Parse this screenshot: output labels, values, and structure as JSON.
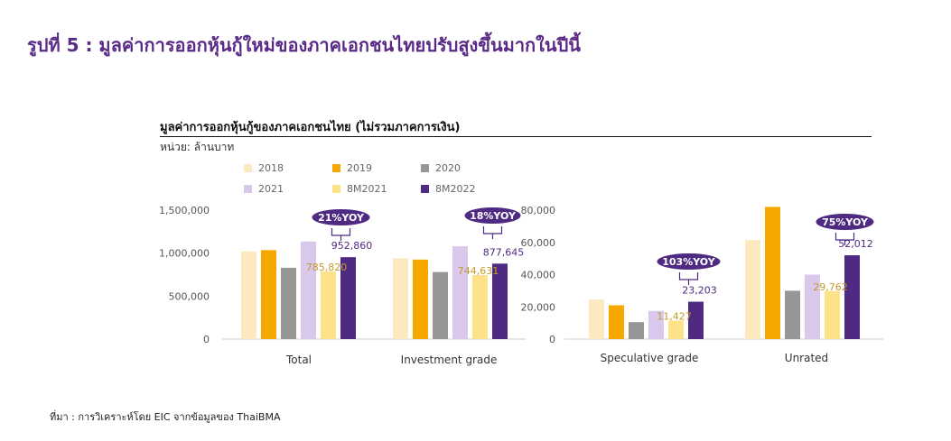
{
  "header": {
    "figure_title": "รูปที่ 5 : มูลค่าการออกหุ้นกู้ใหม่ของภาคเอกชนไทยปรับสูงขึ้นมากในปีนี้",
    "chart_title": "มูลค่าการออกหุ้นกู้ของภาคเอกชนไทย (ไม่รวมภาคการเงิน)",
    "unit": "หน่วย: ล้านบาท"
  },
  "source": "ที่มา : การวิเคราะห์โดย EIC จากข้อมูลของ ThaiBMA",
  "colors": {
    "2018": "#fde9c0",
    "2019": "#f7a800",
    "2020": "#969696",
    "2021": "#d9c8ec",
    "8M2021": "#fde28a",
    "8M2022": "#4f2a82",
    "label_8M2021": "#c49a2a",
    "label_8M2022": "#4f2a82",
    "yoy_badge": "#4f2a82"
  },
  "chart_data": [
    {
      "type": "bar",
      "categories": [
        "Total",
        "Investment grade"
      ],
      "series": [
        {
          "name": "2018",
          "values": [
            1020000,
            940000
          ]
        },
        {
          "name": "2019",
          "values": [
            1035000,
            925000
          ]
        },
        {
          "name": "2020",
          "values": [
            830000,
            780000
          ]
        },
        {
          "name": "2021",
          "values": [
            1135000,
            1080000
          ]
        },
        {
          "name": "8M2021",
          "values": [
            785820,
            744631
          ]
        },
        {
          "name": "8M2022",
          "values": [
            952860,
            877645
          ]
        }
      ],
      "ylim": [
        0,
        1500000
      ],
      "yticks": [
        0,
        500000,
        1000000,
        1500000
      ],
      "ytick_labels": [
        "0",
        "500,000",
        "1,000,000",
        "1,500,000"
      ],
      "data_labels": {
        "8M2021": [
          "785,820",
          "744,631"
        ],
        "8M2022": [
          "952,860",
          "877,645"
        ]
      },
      "annotations": [
        "21%YOY",
        "18%YOY"
      ]
    },
    {
      "type": "bar",
      "categories": [
        "Speculative grade",
        "Unrated"
      ],
      "series": [
        {
          "name": "2018",
          "values": [
            24500,
            61500
          ]
        },
        {
          "name": "2019",
          "values": [
            21000,
            82000
          ]
        },
        {
          "name": "2020",
          "values": [
            10500,
            30000
          ]
        },
        {
          "name": "2021",
          "values": [
            17500,
            40000
          ]
        },
        {
          "name": "8M2021",
          "values": [
            11427,
            29762
          ]
        },
        {
          "name": "8M2022",
          "values": [
            23203,
            52012
          ]
        }
      ],
      "ylim": [
        0,
        80000
      ],
      "yticks": [
        0,
        20000,
        40000,
        60000,
        80000
      ],
      "ytick_labels": [
        "0",
        "20,000",
        "40,000",
        "60,000",
        "80,000"
      ],
      "data_labels": {
        "8M2021": [
          "11,427",
          "29,762"
        ],
        "8M2022": [
          "23,203",
          "52,012"
        ]
      },
      "annotations": [
        "103%YOY",
        "75%YOY"
      ]
    }
  ]
}
